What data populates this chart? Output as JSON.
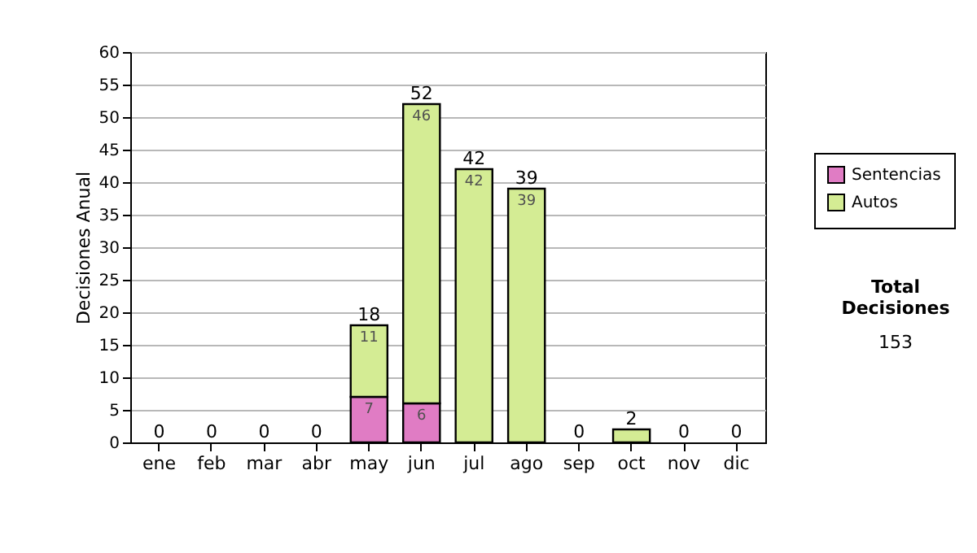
{
  "chart_data": {
    "type": "bar",
    "stacked": true,
    "ylabel": "Decisiones Anual",
    "categories": [
      "ene",
      "feb",
      "mar",
      "abr",
      "may",
      "jun",
      "jul",
      "ago",
      "sep",
      "oct",
      "nov",
      "dic"
    ],
    "series": [
      {
        "name": "Sentencias",
        "color": "#e07cc4",
        "values": [
          0,
          0,
          0,
          0,
          7,
          6,
          0,
          0,
          0,
          0,
          0,
          0
        ],
        "value_labels": [
          null,
          null,
          null,
          null,
          "7",
          "6",
          null,
          null,
          null,
          null,
          null,
          null
        ]
      },
      {
        "name": "Autos",
        "color": "#d4ec94",
        "values": [
          0,
          0,
          0,
          0,
          11,
          46,
          42,
          39,
          0,
          2,
          0,
          0
        ],
        "value_labels": [
          null,
          null,
          null,
          null,
          "11",
          "46",
          "42",
          "39",
          null,
          null,
          null,
          null
        ]
      }
    ],
    "totals": [
      "0",
      "0",
      "0",
      "0",
      "18",
      "52",
      "42",
      "39",
      "0",
      "2",
      "0",
      "0"
    ],
    "ylim": [
      0,
      60
    ],
    "yticks": [
      0,
      5,
      10,
      15,
      20,
      25,
      30,
      35,
      40,
      45,
      50,
      55,
      60
    ],
    "grid": "y",
    "legend": "right",
    "annotations": [
      "Total Decisiones",
      "153"
    ]
  }
}
